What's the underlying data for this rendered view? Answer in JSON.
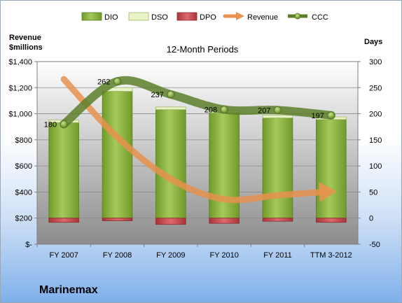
{
  "company": "Marinemax",
  "chart_data": {
    "type": "bar",
    "title": "12-Month Periods",
    "categories": [
      "FY 2007",
      "FY 2008",
      "FY 2009",
      "FY 2010",
      "FY 2011",
      "TTM 3-2012"
    ],
    "left_axis": {
      "label_line1": "Revenue",
      "label_line2": "$millions",
      "ylim": [
        0,
        1400
      ],
      "ticks": [
        0,
        200,
        400,
        600,
        800,
        1000,
        1200,
        1400
      ],
      "tick_labels": [
        "$-",
        "$200",
        "$400",
        "$600",
        "$800",
        "$1,000",
        "$1,200",
        "$1,400"
      ]
    },
    "right_axis": {
      "label": "Days",
      "ylim": [
        -50,
        300
      ],
      "ticks": [
        -50,
        0,
        50,
        100,
        150,
        200,
        250,
        300
      ],
      "tick_labels": [
        "-50",
        "0",
        "50",
        "100",
        "150",
        "200",
        "250",
        "300"
      ]
    },
    "grid": true,
    "legend_position": "top",
    "series": [
      {
        "name": "DIO",
        "axis": "right",
        "kind": "stacked-bar",
        "color": "#8db43c",
        "values": [
          183,
          243,
          208,
          202,
          192,
          189
        ]
      },
      {
        "name": "DSO",
        "axis": "right",
        "kind": "stacked-bar",
        "color": "#eaf3c8",
        "values": [
          5,
          7,
          5,
          5,
          5,
          5
        ]
      },
      {
        "name": "DPO",
        "axis": "right",
        "kind": "negative-bar",
        "color": "#c8474b",
        "values": [
          -8,
          -5,
          -12,
          -10,
          -6,
          -8
        ]
      },
      {
        "name": "Revenue",
        "axis": "left",
        "kind": "smoothed-arrow",
        "color": "#e8924e",
        "values": [
          1265,
          820,
          500,
          345,
          375,
          410
        ]
      },
      {
        "name": "CCC",
        "axis": "right",
        "kind": "smoothed-line",
        "color": "#5d7f2a",
        "values": [
          180,
          262,
          237,
          208,
          207,
          197
        ],
        "labels": [
          "180",
          "262",
          "237",
          "208",
          "207",
          "197"
        ]
      }
    ]
  }
}
